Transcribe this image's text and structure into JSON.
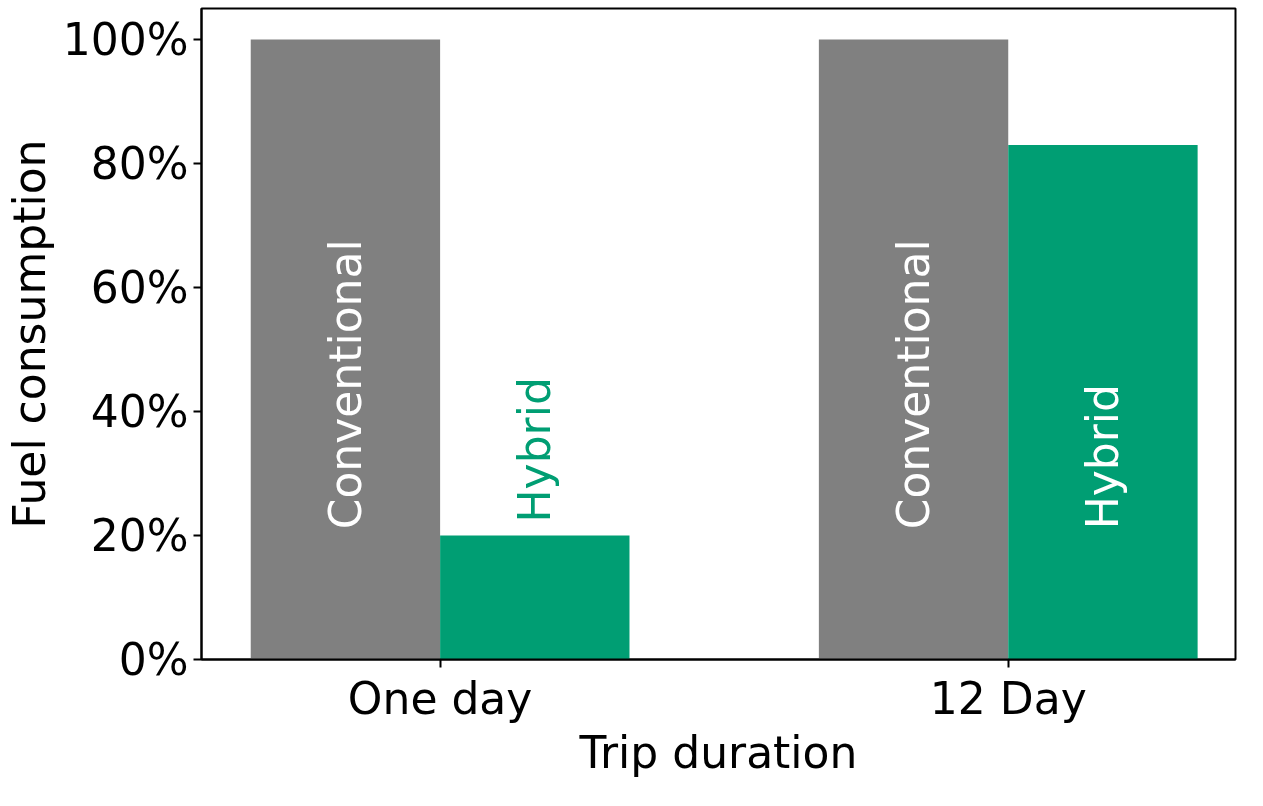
{
  "chart_data": {
    "type": "bar",
    "xlabel": "Trip duration",
    "ylabel": "Fuel consumption",
    "categories": [
      "One day",
      "12 Day"
    ],
    "series": [
      {
        "name": "Conventional",
        "color": "#808080",
        "values": [
          100,
          100
        ]
      },
      {
        "name": "Hybrid",
        "color": "#009e73",
        "values": [
          20,
          83
        ]
      }
    ],
    "ylim": [
      0,
      105
    ],
    "yticks": [
      {
        "value": 0,
        "label": "0%"
      },
      {
        "value": 20,
        "label": "20%"
      },
      {
        "value": 40,
        "label": "40%"
      },
      {
        "value": 60,
        "label": "60%"
      },
      {
        "value": 80,
        "label": "80%"
      },
      {
        "value": 100,
        "label": "100%"
      }
    ],
    "grid": false
  }
}
